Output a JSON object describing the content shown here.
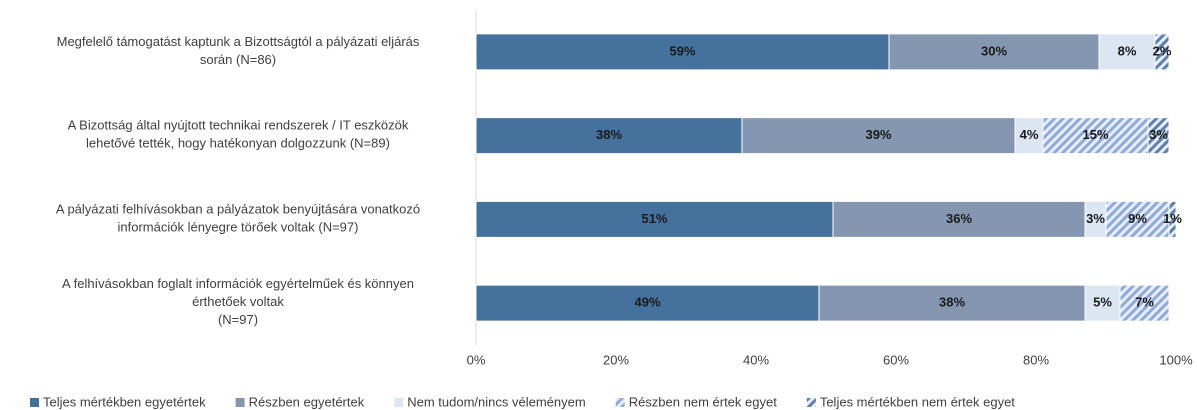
{
  "chart_data": {
    "type": "stacked-bar-horizontal",
    "categories": [
      "Megfelelő támogatást kaptunk a Bizottságtól a pályázati eljárás\nsorán (N=86)",
      "A Bizottság által nyújtott technikai rendszerek / IT eszközök\nlehetővé tették, hogy hatékonyan dolgozzunk (N=89)",
      "A pályázati felhívásokban a pályázatok benyújtására vonatkozó\ninformációk lényegre törőek voltak  (N=97)",
      "A felhívásokban foglalt információk egyértelműek és könnyen\nérthetőek voltak\n(N=97)"
    ],
    "series": [
      {
        "name": "Teljes mértékben egyetértek",
        "color": "#44729d",
        "hatch": false,
        "values": [
          59,
          38,
          51,
          49
        ],
        "value_labels": [
          "59%",
          "38%",
          "51%",
          "49%"
        ]
      },
      {
        "name": "Részben egyetértek",
        "color": "#8496b0",
        "hatch": false,
        "values": [
          30,
          39,
          36,
          38
        ],
        "value_labels": [
          "30%",
          "39%",
          "36%",
          "38%"
        ]
      },
      {
        "name": "Nem tudom/nincs véleményem",
        "color": "#dce6f2",
        "hatch": false,
        "values": [
          8,
          4,
          3,
          5
        ],
        "value_labels": [
          "8%",
          "4%",
          "3%",
          "5%"
        ]
      },
      {
        "name": "Részben nem értek egyet",
        "color": "#8eaadb",
        "hatch": true,
        "values": [
          null,
          15,
          9,
          7
        ],
        "value_labels": [
          null,
          "15%",
          "9%",
          "7%"
        ]
      },
      {
        "name": "Teljes mértékben nem értek egyet",
        "color": "#5b7fb0",
        "hatch": true,
        "values": [
          2,
          3,
          1,
          null
        ],
        "value_labels": [
          "2%",
          "3%",
          "1%",
          null
        ]
      }
    ],
    "xlim": [
      0,
      100
    ],
    "xticks": [
      {
        "value": 0,
        "label": "0%"
      },
      {
        "value": 20,
        "label": "20%"
      },
      {
        "value": 40,
        "label": "40%"
      },
      {
        "value": 60,
        "label": "60%"
      },
      {
        "value": 80,
        "label": "80%"
      },
      {
        "value": 100,
        "label": "100%"
      }
    ],
    "legend": "bottom"
  }
}
